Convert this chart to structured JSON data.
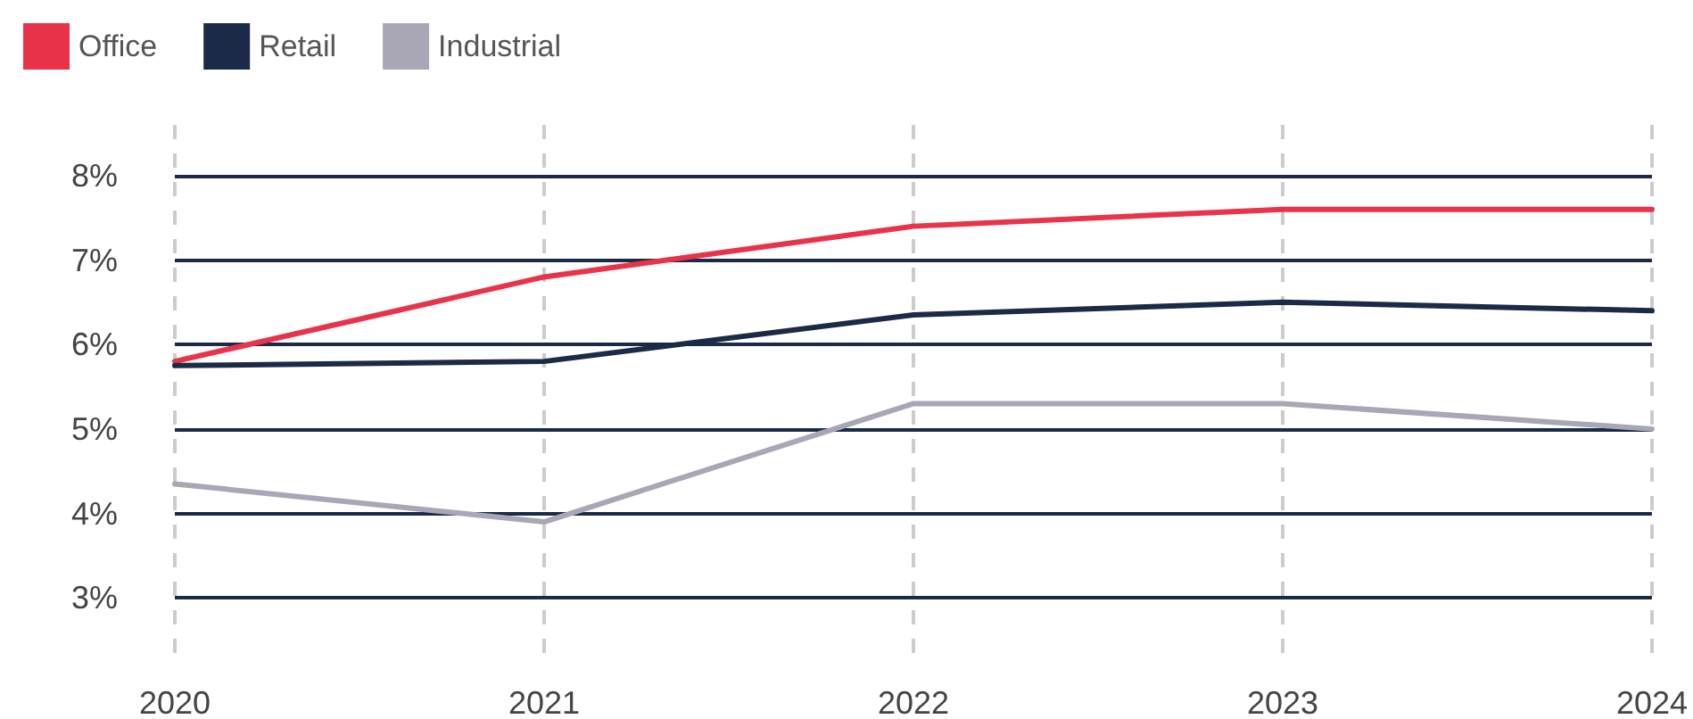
{
  "chart_data": {
    "type": "line",
    "categories": [
      "2020",
      "2021",
      "2022",
      "2023",
      "2024"
    ],
    "series": [
      {
        "name": "Office",
        "color": "#e8334a",
        "values": [
          5.8,
          6.8,
          7.4,
          7.6,
          7.6
        ]
      },
      {
        "name": "Retail",
        "color": "#1b2a47",
        "values": [
          5.75,
          5.8,
          6.35,
          6.5,
          6.4
        ]
      },
      {
        "name": "Industrial",
        "color": "#a9a7b5",
        "values": [
          4.35,
          3.9,
          5.3,
          5.3,
          5.0
        ]
      }
    ],
    "ylim": [
      2.2,
      8.6
    ],
    "yticks": [
      {
        "value": 3,
        "label": "3%"
      },
      {
        "value": 4,
        "label": "4%"
      },
      {
        "value": 5,
        "label": "5%"
      },
      {
        "value": 6,
        "label": "6%"
      },
      {
        "value": 7,
        "label": "7%"
      },
      {
        "value": 8,
        "label": "8%"
      }
    ],
    "grid": true,
    "legend": "top left",
    "marker": "none",
    "line_style": "solid"
  }
}
